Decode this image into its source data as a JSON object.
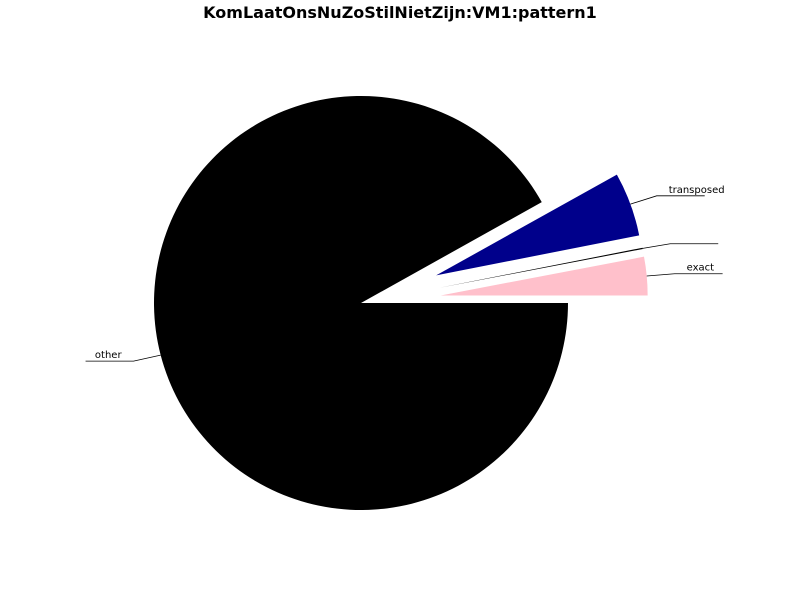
{
  "chart_data": {
    "type": "pie",
    "title": "KomLaatOnsNuZoStilNietZijn:VM1:pattern1",
    "slices": [
      {
        "label": "other",
        "value": 91.9,
        "color": "#000000",
        "explode": false
      },
      {
        "label": "transposed",
        "value": 5.0,
        "color": "#00008b",
        "explode": true
      },
      {
        "label": "",
        "value": 0.1,
        "color": "#000000",
        "explode": true
      },
      {
        "label": "exact",
        "value": 3.0,
        "color": "#ffc0cb",
        "explode": true
      }
    ],
    "start": "3 o'clock",
    "direction": "clockwise",
    "legend": "none"
  }
}
